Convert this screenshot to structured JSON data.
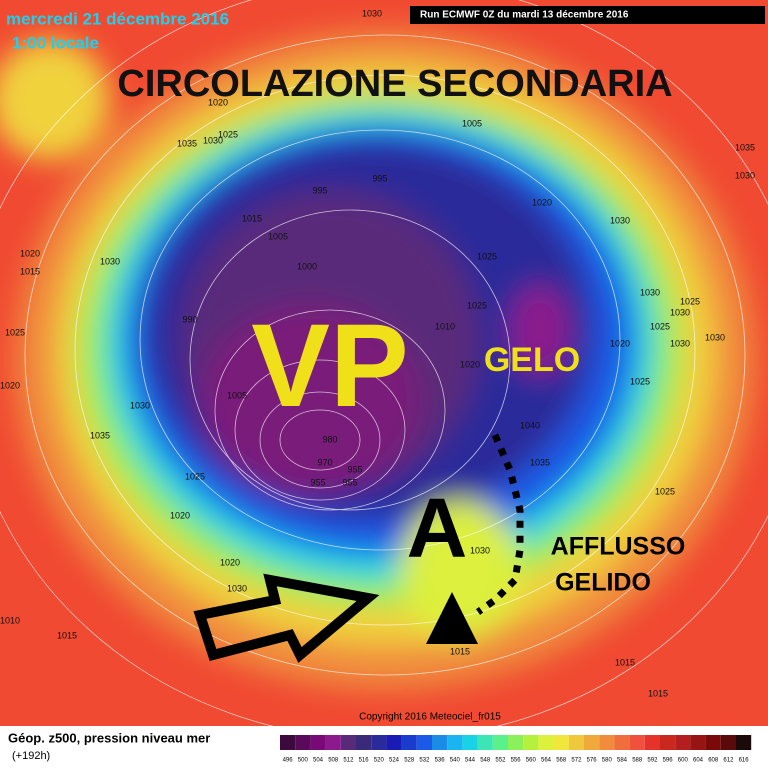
{
  "header": {
    "date": "mercredi 21 décembre 2016",
    "time": "1:00 locale",
    "run": "Run ECMWF 0Z du mardi 13 décembre 2016"
  },
  "annotations": {
    "title": "CIRCOLAZIONE SECONDARIA",
    "vortex": "VP",
    "frost": "GELO",
    "anticyclone": "A",
    "inflow": [
      "AFFLUSSO",
      "GELIDO"
    ]
  },
  "isobar_labels": [
    1030,
    1020,
    1025,
    1035,
    1030,
    1005,
    995,
    995,
    1020,
    1015,
    1005,
    1030,
    1020,
    1015,
    1030,
    1025,
    1000,
    1025,
    1030,
    1025,
    1030,
    990,
    1010,
    1025,
    1020,
    1030,
    1030,
    1020,
    1020,
    1030,
    1005,
    1025,
    1040,
    1035,
    980,
    970,
    955,
    955,
    955,
    1035,
    1025,
    1025,
    1020,
    1030,
    1020,
    1030,
    1010,
    1015,
    1015,
    1015,
    1015,
    1035,
    1030,
    1025
  ],
  "copyright": "Copyright 2016 Meteociel_fr015",
  "footer": {
    "title": "Géop. z500, pression niveau mer",
    "lead": "(+192h)"
  },
  "legend": {
    "values": [
      496,
      500,
      504,
      508,
      512,
      516,
      520,
      524,
      528,
      532,
      536,
      540,
      544,
      548,
      552,
      556,
      560,
      564,
      568,
      572,
      576,
      580,
      584,
      588,
      592,
      596,
      600,
      604,
      608,
      612,
      616
    ],
    "colors": [
      "#3c0a3c",
      "#5a0a5a",
      "#780a78",
      "#8c1a8c",
      "#5a2a7a",
      "#3a2a7a",
      "#2a2a9a",
      "#1a1ab4",
      "#1a3ccc",
      "#1a5ae6",
      "#1a8ce6",
      "#1ab4f0",
      "#1ad2e6",
      "#3ce6b4",
      "#5af08c",
      "#8cf05a",
      "#b4f03c",
      "#dcf03c",
      "#f0e63c",
      "#f0c83c",
      "#f0aa3c",
      "#f08c3c",
      "#f06e3c",
      "#f0503c",
      "#e6322a",
      "#c8281e",
      "#b41e1e",
      "#961414",
      "#7a0a0a",
      "#5a0a0a",
      "#1a0a0a"
    ]
  }
}
